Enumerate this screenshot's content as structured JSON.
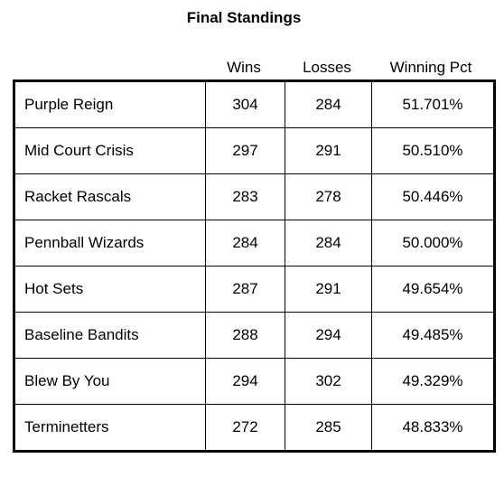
{
  "title": "Final Standings",
  "headers": {
    "team": "",
    "wins": "Wins",
    "losses": "Losses",
    "pct": "Winning Pct"
  },
  "rows": [
    {
      "team": "Purple Reign",
      "wins": "304",
      "losses": "284",
      "pct": "51.701%"
    },
    {
      "team": "Mid Court Crisis",
      "wins": "297",
      "losses": "291",
      "pct": "50.510%"
    },
    {
      "team": "Racket Rascals",
      "wins": "283",
      "losses": "278",
      "pct": "50.446%"
    },
    {
      "team": "Pennball Wizards",
      "wins": "284",
      "losses": "284",
      "pct": "50.000%"
    },
    {
      "team": "Hot Sets",
      "wins": "287",
      "losses": "291",
      "pct": "49.654%"
    },
    {
      "team": "Baseline Bandits",
      "wins": "288",
      "losses": "294",
      "pct": "49.485%"
    },
    {
      "team": "Blew By You",
      "wins": "294",
      "losses": "302",
      "pct": "49.329%"
    },
    {
      "team": "Terminetters",
      "wins": "272",
      "losses": "285",
      "pct": "48.833%"
    }
  ]
}
